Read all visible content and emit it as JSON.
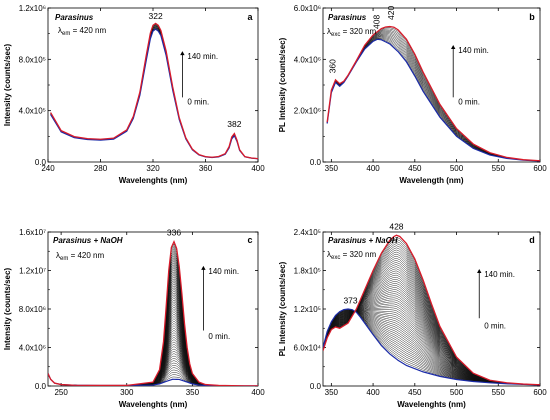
{
  "chart_data": [
    {
      "id": "a",
      "type": "line",
      "panel_label": "a",
      "title": "Parasinus",
      "annotation": {
        "main": "λ",
        "sub": "em",
        "rest": " = 420 nm"
      },
      "xlabel": "Wavelenghts (nm)",
      "ylabel": "Intensity (counts/sec)",
      "xlim": [
        240,
        400
      ],
      "ylim": [
        0,
        1200000
      ],
      "xticks": [
        240,
        280,
        320,
        360,
        400
      ],
      "xtick_labels": [
        "240",
        "280",
        "320",
        "360",
        "400"
      ],
      "yticks": [
        0,
        400000,
        800000,
        1200000
      ],
      "ytick_labels": [
        "0.0",
        "4.0x10⁵",
        "8.0x10⁵",
        "1.2x10⁶"
      ],
      "time_start": "0 min.",
      "time_end": "140 min.",
      "n_curves": 15,
      "peak_labels": [
        {
          "text": "322",
          "x": 322,
          "y": 1085000
        },
        {
          "text": "382",
          "x": 382,
          "y": 240000
        }
      ],
      "first_color": "#1a2aa8",
      "last_color": "#d81b2a",
      "series_first": {
        "x": [
          242,
          250,
          260,
          270,
          280,
          290,
          300,
          305,
          310,
          315,
          318,
          320,
          322,
          324,
          326,
          330,
          335,
          340,
          345,
          350,
          355,
          360,
          365,
          370,
          375,
          378,
          380,
          382,
          384,
          386,
          390,
          395,
          400
        ],
        "y": [
          370000,
          235000,
          190000,
          175000,
          170000,
          178000,
          240000,
          340000,
          520000,
          800000,
          960000,
          1020000,
          1035000,
          1020000,
          985000,
          830000,
          560000,
          330000,
          180000,
          95000,
          55000,
          40000,
          35000,
          40000,
          60000,
          110000,
          180000,
          205000,
          160000,
          90000,
          40000,
          30000,
          25000
        ]
      },
      "series_last": {
        "x": [
          242,
          250,
          260,
          270,
          280,
          290,
          300,
          305,
          310,
          315,
          318,
          320,
          322,
          324,
          326,
          330,
          335,
          340,
          345,
          350,
          355,
          360,
          365,
          370,
          375,
          378,
          380,
          382,
          384,
          386,
          390,
          395,
          400
        ],
        "y": [
          385000,
          245000,
          198000,
          182000,
          177000,
          186000,
          250000,
          355000,
          545000,
          840000,
          1005000,
          1065000,
          1080000,
          1065000,
          1025000,
          865000,
          585000,
          345000,
          188000,
          100000,
          58000,
          42000,
          37000,
          43000,
          65000,
          120000,
          195000,
          222000,
          170000,
          95000,
          42000,
          31000,
          26000
        ]
      }
    },
    {
      "id": "b",
      "type": "line",
      "panel_label": "b",
      "title": "Parasinus",
      "annotation": {
        "main": "λ",
        "sub": "exc",
        "rest": " = 320 nm"
      },
      "xlabel": "Wavelength (nm)",
      "ylabel": "PL Intensity (counts/sec)",
      "xlim": [
        340,
        600
      ],
      "ylim": [
        0,
        6000000
      ],
      "xticks": [
        350,
        400,
        450,
        500,
        550,
        600
      ],
      "xtick_labels": [
        "350",
        "400",
        "450",
        "500",
        "550",
        "600"
      ],
      "yticks": [
        0,
        2000000,
        4000000,
        6000000
      ],
      "ytick_labels": [
        "0.0",
        "2.0x10⁶",
        "4.0x10⁶",
        "6.0x10⁶"
      ],
      "time_start": "0 min.",
      "time_end": "140 min.",
      "n_curves": 15,
      "peak_labels": [
        {
          "text": "360",
          "x": 360,
          "y": 3300000
        },
        {
          "text": "408",
          "x": 408,
          "y": 4950000
        },
        {
          "text": "420",
          "x": 420,
          "y": 5300000
        }
      ],
      "first_color": "#1a2aa8",
      "last_color": "#d81b2a",
      "series_first": {
        "x": [
          345,
          350,
          355,
          360,
          365,
          370,
          380,
          390,
          400,
          405,
          410,
          420,
          430,
          440,
          450,
          460,
          480,
          500,
          520,
          540,
          560,
          580,
          600
        ],
        "y": [
          1500000,
          2700000,
          3100000,
          2950000,
          3100000,
          3350000,
          3900000,
          4400000,
          4700000,
          4780000,
          4760000,
          4600000,
          4300000,
          3900000,
          3350000,
          2750000,
          1750000,
          1000000,
          530000,
          270000,
          140000,
          70000,
          40000
        ]
      },
      "series_last": {
        "x": [
          345,
          350,
          355,
          360,
          365,
          370,
          380,
          390,
          400,
          410,
          415,
          420,
          425,
          430,
          440,
          450,
          460,
          480,
          500,
          520,
          540,
          560,
          580,
          600
        ],
        "y": [
          1550000,
          2800000,
          3200000,
          3050000,
          3150000,
          3380000,
          3950000,
          4550000,
          4950000,
          5200000,
          5260000,
          5280000,
          5250000,
          5150000,
          4780000,
          4200000,
          3500000,
          2250000,
          1300000,
          700000,
          360000,
          180000,
          90000,
          50000
        ]
      }
    },
    {
      "id": "c",
      "type": "line",
      "panel_label": "c",
      "title": "Parasinus + NaOH",
      "annotation": {
        "main": "λ",
        "sub": "em",
        "rest": " = 420 nm"
      },
      "xlabel": "Wavelenghts (nm)",
      "ylabel": "Intensity (counts/sec)",
      "xlim": [
        240,
        400
      ],
      "ylim": [
        0,
        16000000
      ],
      "xticks": [
        250,
        300,
        350,
        400
      ],
      "xtick_labels": [
        "250",
        "300",
        "350",
        "400"
      ],
      "yticks": [
        0,
        4000000,
        8000000,
        12000000,
        16000000
      ],
      "ytick_labels": [
        "0.0",
        "4.0x10⁶",
        "8.0x10⁶",
        "1.2x10⁷",
        "1.6x10⁷"
      ],
      "time_start": "0 min.",
      "time_end": "140 min.",
      "n_curves": 60,
      "peak_labels": [
        {
          "text": "336",
          "x": 336,
          "y": 15200000
        }
      ],
      "first_color": "#1a2aa8",
      "last_color": "#d81b2a",
      "series_first": {
        "x": [
          240,
          242,
          245,
          250,
          260,
          280,
          300,
          320,
          325,
          330,
          335,
          340,
          345,
          350,
          355,
          360,
          370,
          380,
          390,
          400
        ],
        "y": [
          1300000,
          700000,
          300000,
          150000,
          80000,
          60000,
          60000,
          100000,
          220000,
          480000,
          700000,
          680000,
          450000,
          220000,
          100000,
          50000,
          30000,
          20000,
          15000,
          10000
        ]
      },
      "series_last": {
        "x": [
          240,
          242,
          245,
          250,
          260,
          280,
          300,
          320,
          325,
          328,
          330,
          332,
          334,
          336,
          338,
          340,
          342,
          344,
          346,
          348,
          350,
          355,
          360,
          370,
          380,
          390,
          400
        ],
        "y": [
          1300000,
          700000,
          300000,
          150000,
          80000,
          60000,
          60000,
          400000,
          1700000,
          4600000,
          8200000,
          12000000,
          14400000,
          15000000,
          14300000,
          12400000,
          9600000,
          6500000,
          4000000,
          2300000,
          1300000,
          400000,
          150000,
          60000,
          30000,
          15000,
          10000
        ]
      }
    },
    {
      "id": "d",
      "type": "line",
      "panel_label": "d",
      "title": "Parasinus + NaOH",
      "annotation": {
        "main": "λ",
        "sub": "exc",
        "rest": " = 320 nm"
      },
      "xlabel": "Wavelenghts (nm)",
      "ylabel": "PL Intensity (counts/sec)",
      "xlim": [
        340,
        600
      ],
      "ylim": [
        0,
        240000
      ],
      "xticks": [
        350,
        400,
        450,
        500,
        550,
        600
      ],
      "xtick_labels": [
        "350",
        "400",
        "450",
        "500",
        "550",
        "600"
      ],
      "yticks": [
        0,
        60000,
        120000,
        180000,
        240000
      ],
      "ytick_labels": [
        "0.0",
        "6.0x10⁴",
        "1.2x10⁵",
        "1.8x10⁵",
        "2.4x10⁵"
      ],
      "time_start": "0 min.",
      "time_end": "140 min.",
      "n_curves": 60,
      "peak_labels": [
        {
          "text": "373",
          "x": 373,
          "y": 122000
        },
        {
          "text": "428",
          "x": 428,
          "y": 238000
        }
      ],
      "first_color": "#1a2aa8",
      "last_color": "#d81b2a",
      "series_first": {
        "x": [
          340,
          345,
          350,
          355,
          360,
          365,
          370,
          375,
          380,
          385,
          390,
          395,
          400,
          410,
          420,
          430,
          440,
          460,
          480,
          500,
          520,
          540,
          560,
          580,
          600
        ],
        "y": [
          60000,
          85000,
          100000,
          110000,
          116000,
          119000,
          120000,
          119000,
          115000,
          107000,
          98000,
          89000,
          80000,
          63000,
          50000,
          40000,
          32000,
          22000,
          15000,
          10000,
          7000,
          5000,
          3500,
          2500,
          1500
        ]
      },
      "series_last": {
        "x": [
          340,
          345,
          350,
          355,
          360,
          370,
          380,
          390,
          400,
          410,
          420,
          425,
          428,
          432,
          440,
          450,
          460,
          470,
          480,
          500,
          520,
          540,
          560,
          580,
          600
        ],
        "y": [
          55000,
          75000,
          88000,
          92000,
          90000,
          98000,
          120000,
          150000,
          180000,
          207000,
          227000,
          233000,
          235000,
          233000,
          222000,
          198000,
          165000,
          128000,
          93000,
          45000,
          20000,
          9000,
          5000,
          3000,
          2000
        ]
      }
    }
  ]
}
